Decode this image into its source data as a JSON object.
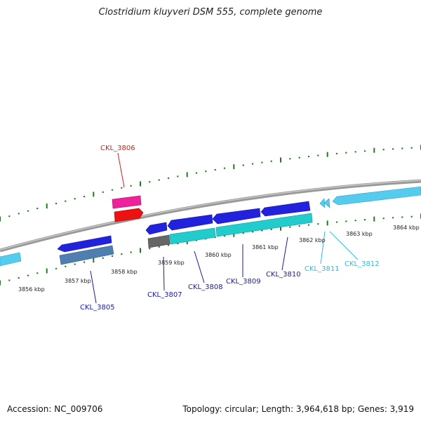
{
  "title": "Clostridium kluyveri DSM 555, complete genome",
  "footer": {
    "accession": "Accession: NC_009706",
    "summary": "Topology: circular; Length: 3,964,618 bp; Genes: 3,919"
  },
  "colors": {
    "backbone": "#8a8a8a",
    "tick": "#1f7a1f",
    "label_blue": "#1a1aa0",
    "label_red": "#cc2222",
    "label_cyan": "#33bbdd",
    "gene_blue": "#2222dd",
    "gene_cyan": "#22cccc",
    "gene_steel": "#4f7fb0",
    "gene_gray": "#666666",
    "gene_pink": "#ee2299",
    "gene_red": "#ee1111",
    "gene_light_cyan": "#55ccee"
  },
  "kbp_labels": [
    "3856 kbp",
    "3857 kbp",
    "3858 kbp",
    "3859 kbp",
    "3860 kbp",
    "3861 kbp",
    "3862 kbp",
    "3863 kbp",
    "3864 kbp"
  ],
  "gene_labels": [
    {
      "id": "CKL_3805",
      "color": "label_blue"
    },
    {
      "id": "CKL_3806",
      "color": "label_red"
    },
    {
      "id": "CKL_3807",
      "color": "label_blue"
    },
    {
      "id": "CKL_3808",
      "color": "label_blue"
    },
    {
      "id": "CKL_3809",
      "color": "label_blue"
    },
    {
      "id": "CKL_3810",
      "color": "label_blue"
    },
    {
      "id": "CKL_3811",
      "color": "label_cyan"
    },
    {
      "id": "CKL_3812",
      "color": "label_cyan"
    }
  ]
}
